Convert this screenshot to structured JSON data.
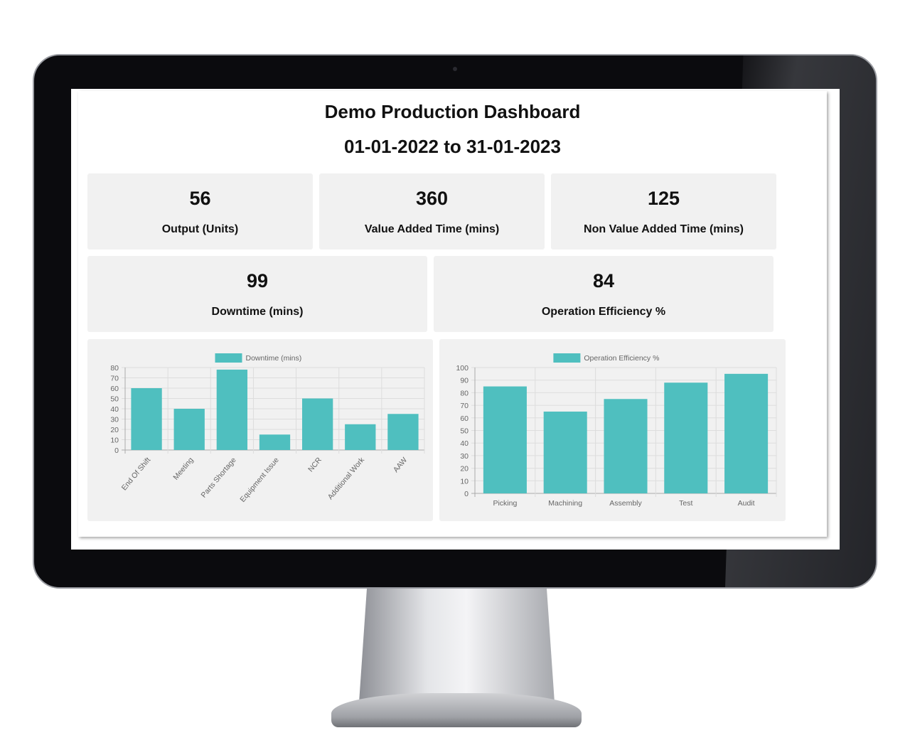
{
  "header": {
    "title": "Demo Production Dashboard",
    "date_range": "01-01-2022 to 31-01-2023"
  },
  "kpis": [
    {
      "value": "56",
      "label": "Output (Units)"
    },
    {
      "value": "360",
      "label": "Value Added Time (mins)"
    },
    {
      "value": "125",
      "label": "Non Value Added Time (mins)"
    },
    {
      "value": "99",
      "label": "Downtime (mins)"
    },
    {
      "value": "84",
      "label": "Operation Efficiency %"
    }
  ],
  "chart_data": [
    {
      "type": "bar",
      "legend": "Downtime (mins)",
      "legend_position": "top",
      "color": "#4fbfbf",
      "grid": true,
      "categories": [
        "End Of Shift",
        "Meeting",
        "Parts Shortage",
        "Equipment Issue",
        "NCR",
        "Additional Work",
        "AAW"
      ],
      "values": [
        60,
        40,
        78,
        15,
        50,
        25,
        35
      ],
      "ylim": [
        0,
        80
      ],
      "yticks": [
        0,
        10,
        20,
        30,
        40,
        50,
        60,
        70,
        80
      ],
      "xlabel_rotation": -50
    },
    {
      "type": "bar",
      "legend": "Operation Efficiency %",
      "legend_position": "top",
      "color": "#4fbfbf",
      "grid": true,
      "categories": [
        "Picking",
        "Machining",
        "Assembly",
        "Test",
        "Audit"
      ],
      "values": [
        85,
        65,
        75,
        88,
        95
      ],
      "ylim": [
        0,
        100
      ],
      "yticks": [
        0,
        10,
        20,
        30,
        40,
        50,
        60,
        70,
        80,
        90,
        100
      ]
    }
  ]
}
